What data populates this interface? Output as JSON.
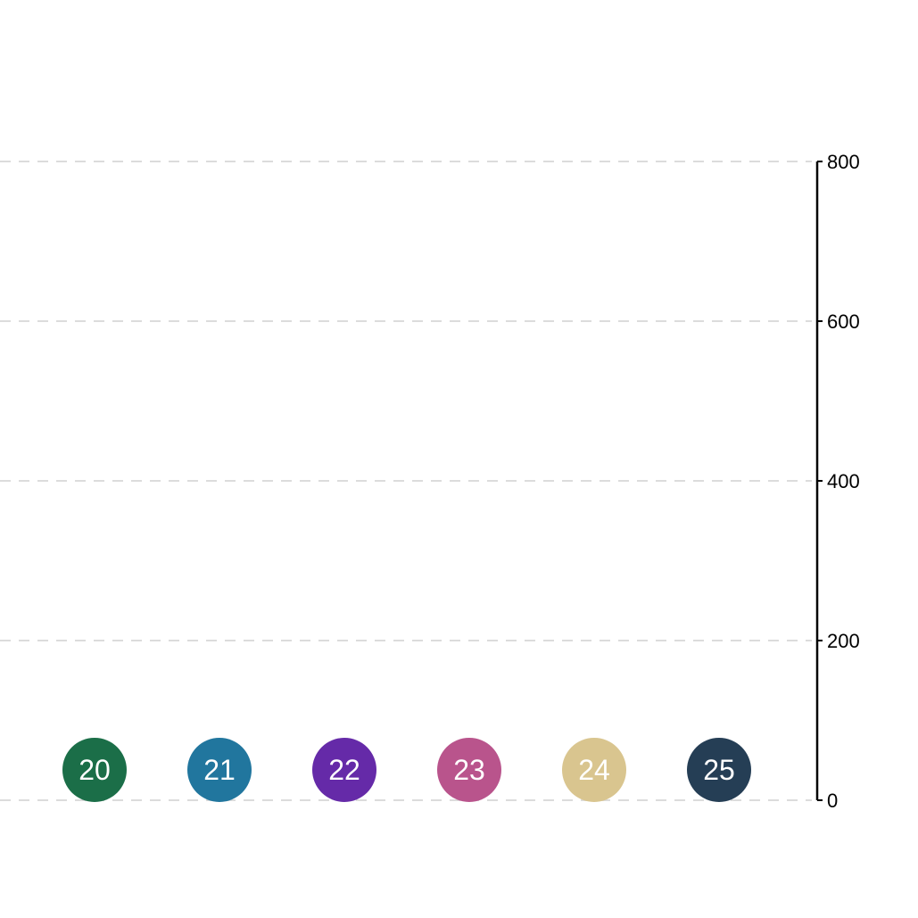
{
  "chart_data": {
    "type": "scatter",
    "title": "",
    "xlabel": "",
    "ylabel": "",
    "ylim": [
      0,
      800
    ],
    "y_ticks": [
      "0",
      "200",
      "400",
      "600",
      "800"
    ],
    "y_axis_side": "right",
    "grid": "horizontal-dashed",
    "points": [
      {
        "label": "20",
        "y": 38,
        "color": "#1b6e48"
      },
      {
        "label": "21",
        "y": 38,
        "color": "#21769e"
      },
      {
        "label": "22",
        "y": 38,
        "color": "#652aa8"
      },
      {
        "label": "23",
        "y": 38,
        "color": "#b9548c"
      },
      {
        "label": "24",
        "y": 38,
        "color": "#d9c58f"
      },
      {
        "label": "25",
        "y": 38,
        "color": "#253e55"
      }
    ]
  }
}
